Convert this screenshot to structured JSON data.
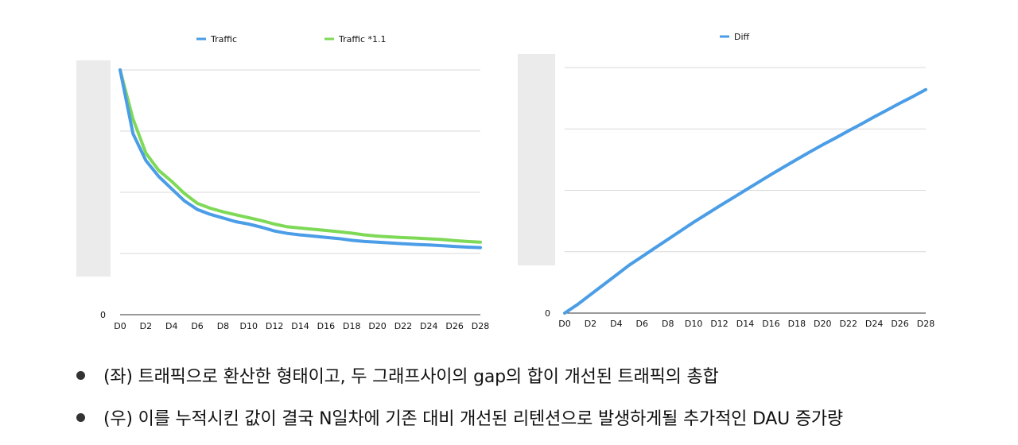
{
  "chart_data": [
    {
      "type": "line",
      "legend": "top",
      "grid": true,
      "x": [
        "D0",
        "D1",
        "D2",
        "D3",
        "D4",
        "D5",
        "D6",
        "D7",
        "D8",
        "D9",
        "D10",
        "D11",
        "D12",
        "D13",
        "D14",
        "D15",
        "D16",
        "D17",
        "D18",
        "D19",
        "D20",
        "D21",
        "D22",
        "D23",
        "D24",
        "D25",
        "D26",
        "D27",
        "D28"
      ],
      "x_tick_labels": [
        "D0",
        "D2",
        "D4",
        "D6",
        "D8",
        "D10",
        "D12",
        "D14",
        "D16",
        "D18",
        "D20",
        "D22",
        "D24",
        "D26",
        "D28"
      ],
      "y_tick_labels": [
        "0"
      ],
      "ylim": [
        0,
        100
      ],
      "series": [
        {
          "name": "Traffic",
          "color": "#4a9de6",
          "values": [
            100,
            74,
            63,
            56.5,
            51.5,
            46.5,
            43,
            41,
            39.5,
            38,
            37,
            35.7,
            34.2,
            33.2,
            32.6,
            32.1,
            31.6,
            31.1,
            30.4,
            29.9,
            29.6,
            29.3,
            29.0,
            28.7,
            28.5,
            28.2,
            27.9,
            27.6,
            27.4
          ]
        },
        {
          "name": "Traffic *1.1",
          "color": "#7ed957",
          "values": [
            100,
            80,
            66,
            59,
            54.5,
            49.5,
            45.5,
            43.5,
            42,
            40.8,
            39.6,
            38.4,
            37.0,
            35.9,
            35.4,
            34.9,
            34.4,
            33.9,
            33.3,
            32.6,
            32.1,
            31.8,
            31.5,
            31.3,
            31.0,
            30.7,
            30.3,
            29.9,
            29.6
          ]
        }
      ]
    },
    {
      "type": "line",
      "legend": "top",
      "grid": true,
      "x": [
        "D0",
        "D1",
        "D2",
        "D3",
        "D4",
        "D5",
        "D6",
        "D7",
        "D8",
        "D9",
        "D10",
        "D11",
        "D12",
        "D13",
        "D14",
        "D15",
        "D16",
        "D17",
        "D18",
        "D19",
        "D20",
        "D21",
        "D22",
        "D23",
        "D24",
        "D25",
        "D26",
        "D27",
        "D28"
      ],
      "x_tick_labels": [
        "D0",
        "D2",
        "D4",
        "D6",
        "D8",
        "D10",
        "D12",
        "D14",
        "D16",
        "D18",
        "D20",
        "D22",
        "D24",
        "D26",
        "D28"
      ],
      "y_tick_labels": [
        "0"
      ],
      "ylim": [
        0,
        100
      ],
      "series": [
        {
          "name": "Diff",
          "color": "#4a9de6",
          "values": [
            0,
            3.5,
            7.5,
            11.5,
            15.5,
            19.5,
            23,
            26.5,
            30,
            33.5,
            37,
            40.3,
            43.6,
            46.8,
            50,
            53.2,
            56.4,
            59.5,
            62.6,
            65.6,
            68.5,
            71.3,
            74.2,
            77.0,
            79.9,
            82.7,
            85.5,
            88.2,
            91.0
          ]
        }
      ]
    }
  ],
  "bullets": [
    "(좌) 트래픽으로 환산한 형태이고, 두 그래프사이의 gap의 합이 개선된 트래픽의 총합",
    "(우) 이를 누적시킨 값이 결국 N일차에 기존 대비 개선된 리텐션으로 발생하게될 추가적인 DAU 증가량"
  ]
}
